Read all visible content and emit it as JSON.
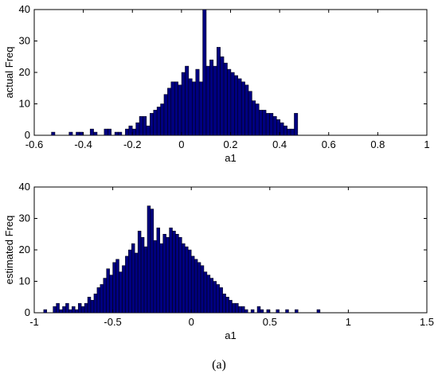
{
  "chart_data": [
    {
      "type": "bar",
      "xlabel": "a1",
      "ylabel": "actual Freq",
      "xlim": [
        -0.6,
        1
      ],
      "ylim": [
        0,
        40
      ],
      "xticks": [
        "-0.6",
        "-0.4",
        "-0.2",
        "0",
        "0.2",
        "0.4",
        "0.6",
        "0.8",
        "1"
      ],
      "xtick_values": [
        -0.6,
        -0.4,
        -0.2,
        0,
        0.2,
        0.4,
        0.6,
        0.8,
        1
      ],
      "yticks": [
        "0",
        "10",
        "20",
        "30",
        "40"
      ],
      "ytick_values": [
        0,
        10,
        20,
        30,
        40
      ],
      "bin_start": -0.53,
      "bin_width": 0.01434,
      "values": [
        1,
        0,
        0,
        0,
        0,
        1,
        0,
        1,
        1,
        0,
        0,
        2,
        1,
        0,
        0,
        2,
        2,
        0,
        1,
        1,
        0,
        2,
        3,
        2,
        4,
        6,
        6,
        3,
        7,
        8,
        9,
        10,
        13,
        15,
        17,
        17,
        16,
        20,
        22,
        18,
        17,
        21,
        17,
        40,
        22,
        24,
        22,
        28,
        25,
        23,
        21,
        20,
        19,
        18,
        17,
        16,
        14,
        11,
        10,
        8,
        8,
        7,
        7,
        6,
        5,
        4,
        3,
        2,
        2,
        7
      ],
      "grid": false
    },
    {
      "type": "bar",
      "xlabel": "a1",
      "ylabel": "estimated Freq",
      "xlim": [
        -1,
        1.5
      ],
      "ylim": [
        0,
        40
      ],
      "xticks": [
        "-1",
        "-0.5",
        "0",
        "0.5",
        "1",
        "1.5"
      ],
      "xtick_values": [
        -1,
        -0.5,
        0,
        0.5,
        1,
        1.5
      ],
      "yticks": [
        "0",
        "10",
        "20",
        "30",
        "40"
      ],
      "ytick_values": [
        0,
        10,
        20,
        30,
        40
      ],
      "bin_start": -0.94,
      "bin_width": 0.02,
      "values": [
        1,
        0,
        0,
        2,
        3,
        1,
        2,
        3,
        1,
        2,
        1,
        3,
        2,
        3,
        5,
        4,
        6,
        8,
        9,
        11,
        14,
        12,
        16,
        17,
        13,
        15,
        18,
        20,
        22,
        19,
        26,
        24,
        21,
        34,
        33,
        23,
        27,
        22,
        25,
        24,
        27,
        26,
        25,
        24,
        22,
        21,
        20,
        18,
        17,
        16,
        15,
        13,
        12,
        11,
        10,
        9,
        8,
        6,
        5,
        4,
        3,
        3,
        2,
        2,
        1,
        0,
        1,
        0,
        2,
        1,
        0,
        1,
        0,
        0,
        1,
        0,
        0,
        1,
        0,
        0,
        1,
        0,
        0,
        0,
        0,
        0,
        0,
        1
      ],
      "grid": false
    }
  ],
  "caption": "(a)"
}
